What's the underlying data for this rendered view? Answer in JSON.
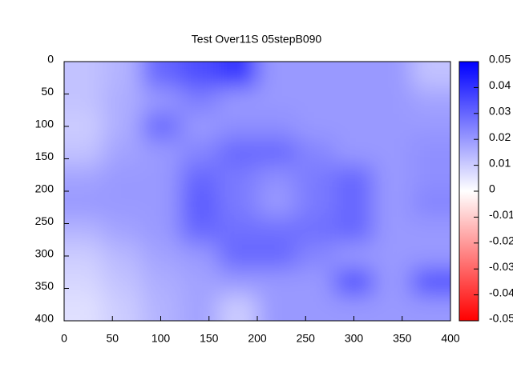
{
  "chart_data": {
    "type": "heatmap",
    "title": "Test Over11S 05stepB090",
    "x": [
      20,
      60,
      100,
      140,
      180,
      220,
      260,
      300,
      340,
      380
    ],
    "y": [
      20,
      60,
      100,
      140,
      180,
      220,
      260,
      300,
      340,
      380
    ],
    "values": [
      [
        0.012,
        0.015,
        0.03,
        0.035,
        0.04,
        0.02,
        0.02,
        0.02,
        0.02,
        0.012
      ],
      [
        0.012,
        0.016,
        0.02,
        0.025,
        0.02,
        0.02,
        0.02,
        0.02,
        0.02,
        0.018
      ],
      [
        0.01,
        0.016,
        0.03,
        0.02,
        0.022,
        0.022,
        0.02,
        0.02,
        0.02,
        0.02
      ],
      [
        0.012,
        0.018,
        0.02,
        0.024,
        0.03,
        0.03,
        0.024,
        0.02,
        0.02,
        0.022
      ],
      [
        0.018,
        0.02,
        0.02,
        0.03,
        0.026,
        0.022,
        0.026,
        0.03,
        0.02,
        0.022
      ],
      [
        0.02,
        0.02,
        0.02,
        0.032,
        0.026,
        0.02,
        0.026,
        0.03,
        0.02,
        0.024
      ],
      [
        0.015,
        0.018,
        0.02,
        0.03,
        0.028,
        0.028,
        0.028,
        0.03,
        0.02,
        0.02
      ],
      [
        0.01,
        0.014,
        0.018,
        0.02,
        0.03,
        0.03,
        0.024,
        0.02,
        0.02,
        0.02
      ],
      [
        0.008,
        0.012,
        0.016,
        0.018,
        0.02,
        0.02,
        0.02,
        0.035,
        0.02,
        0.035
      ],
      [
        0.006,
        0.01,
        0.015,
        0.018,
        0.01,
        0.02,
        0.02,
        0.02,
        0.02,
        0.02
      ]
    ],
    "xlim": [
      0,
      400
    ],
    "ylim": [
      0,
      400
    ],
    "y_reversed": true,
    "xticks": [
      0,
      50,
      100,
      150,
      200,
      250,
      300,
      350,
      400
    ],
    "yticks": [
      0,
      50,
      100,
      150,
      200,
      250,
      300,
      350,
      400
    ],
    "clim": [
      -0.05,
      0.05
    ],
    "cticks": [
      0.05,
      0.04,
      0.03,
      0.02,
      0.01,
      0,
      -0.01,
      -0.02,
      -0.03,
      -0.04,
      -0.05
    ],
    "colormap": [
      "#ff0000",
      "#ffffff",
      "#0000ff"
    ]
  }
}
